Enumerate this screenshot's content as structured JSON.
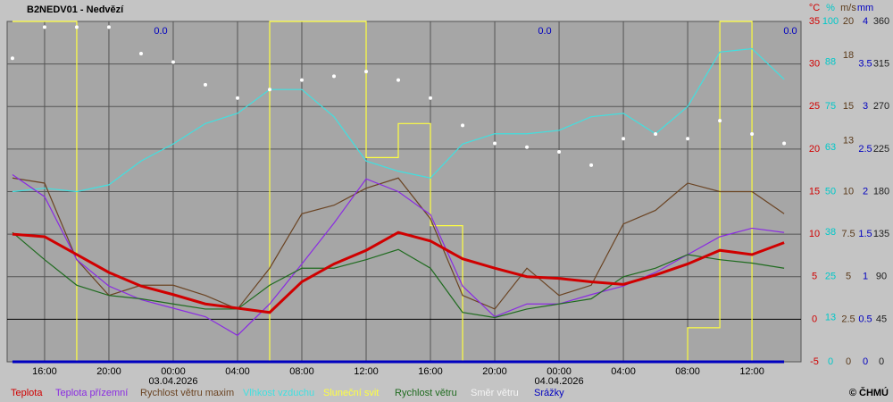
{
  "chart_data": {
    "type": "line",
    "title": "B2NEDV01 - Nedvězí",
    "copyright": "© ČHMÚ",
    "precip_sums": [
      "0.0",
      "0.0",
      "0.0"
    ],
    "x": [
      -10,
      -8,
      -6,
      -4,
      -2,
      0,
      2,
      4,
      6,
      8,
      10,
      12,
      14,
      16,
      18,
      20,
      22,
      24,
      26,
      28,
      30,
      32,
      34,
      36,
      38
    ],
    "xlim": [
      -10.33,
      39.05
    ],
    "xticks": [
      {
        "value": -8,
        "label": "16:00"
      },
      {
        "value": -4,
        "label": "20:00"
      },
      {
        "value": 0,
        "label": "00:00"
      },
      {
        "value": 4,
        "label": "04:00"
      },
      {
        "value": 8,
        "label": "08:00"
      },
      {
        "value": 12,
        "label": "12:00"
      },
      {
        "value": 16,
        "label": "16:00"
      },
      {
        "value": 20,
        "label": "20:00"
      },
      {
        "value": 24,
        "label": "00:00"
      },
      {
        "value": 28,
        "label": "04:00"
      },
      {
        "value": 32,
        "label": "08:00"
      },
      {
        "value": 36,
        "label": "12:00"
      }
    ],
    "date_labels": [
      {
        "value": 0,
        "label": "03.04.2026"
      },
      {
        "value": 24,
        "label": "04.04.2026"
      }
    ],
    "grid": true,
    "y_axes": [
      {
        "unit": "°C",
        "color": "#d00000",
        "lim": [
          -5,
          35
        ],
        "ticks": [
          -5,
          0,
          5,
          10,
          15,
          20,
          25,
          30,
          35
        ]
      },
      {
        "unit": "%",
        "color": "#00c8c8",
        "lim": [
          0,
          100
        ],
        "ticks": [
          0,
          13,
          25,
          38,
          50,
          63,
          75,
          88,
          100
        ]
      },
      {
        "unit": "m/s",
        "color": "#5a3a1a",
        "lim": [
          0,
          20
        ],
        "ticks": [
          0,
          2.5,
          5,
          7.5,
          10,
          13,
          15,
          18,
          20
        ]
      },
      {
        "unit": "mm",
        "color": "#0000c0",
        "lim": [
          0,
          4
        ],
        "ticks": [
          0,
          0.5,
          1,
          1.5,
          2,
          2.5,
          3,
          3.5,
          4
        ]
      },
      {
        "color": "#202020",
        "lim": [
          0,
          360
        ],
        "ticks": [
          0,
          45,
          90,
          135,
          180,
          225,
          270,
          315,
          360
        ]
      }
    ],
    "series": [
      {
        "name": "Teplota",
        "color": "#d00000",
        "axis": 0,
        "style": "thick",
        "values": [
          10,
          9.7,
          7.6,
          5.5,
          3.9,
          2.9,
          1.8,
          1.3,
          0.8,
          4.4,
          6.5,
          8.1,
          10.2,
          9.2,
          7.1,
          6,
          5,
          4.8,
          4.4,
          4.1,
          5.2,
          6.5,
          8.1,
          7.6,
          9
        ]
      },
      {
        "name": "Teplota přízemní",
        "color": "#8a2be2",
        "axis": 0,
        "style": "line",
        "values": [
          17,
          14.4,
          7,
          3.9,
          2.3,
          1.3,
          0.3,
          -1.9,
          1.8,
          6.5,
          11.3,
          16.5,
          15,
          12.3,
          3.9,
          0.3,
          1.8,
          1.8,
          2.9,
          3.9,
          5.5,
          7.6,
          9.7,
          10.7,
          10.2
        ]
      },
      {
        "name": "Rychlost větru maxim",
        "color": "#6b4423",
        "axis": 2,
        "style": "line",
        "values": [
          10.8,
          10.5,
          6,
          3.9,
          4.5,
          4.5,
          3.9,
          3.1,
          5.5,
          8.7,
          9.2,
          10.2,
          10.8,
          8.4,
          3.9,
          3.1,
          5.5,
          3.9,
          4.5,
          8.1,
          8.9,
          10.5,
          10,
          10,
          8.7
        ]
      },
      {
        "name": "Vlhkost vzduchu",
        "color": "#40e0e0",
        "axis": 1,
        "style": "line",
        "values": [
          50,
          51,
          50,
          52,
          59,
          64,
          70,
          73,
          80,
          80,
          72,
          59,
          56,
          54,
          64,
          67,
          67,
          68,
          72,
          73,
          67,
          75,
          91,
          92,
          83
        ]
      },
      {
        "name": "Sluneční svit",
        "color": "#ffff40",
        "axis": 1,
        "style": "step",
        "values": [
          100,
          100,
          0,
          0,
          0,
          0,
          0,
          0,
          100,
          100,
          100,
          60,
          70,
          40,
          0,
          0,
          0,
          0,
          0,
          0,
          0,
          10,
          100,
          0,
          0
        ]
      },
      {
        "name": "Rychlost větru",
        "color": "#1f6b1f",
        "axis": 2,
        "style": "line",
        "values": [
          7.6,
          6,
          4.5,
          3.9,
          3.7,
          3.4,
          3.1,
          3.1,
          4.5,
          5.5,
          5.5,
          6,
          6.6,
          5.5,
          2.9,
          2.6,
          3.1,
          3.4,
          3.7,
          5,
          5.5,
          6.3,
          6,
          5.8,
          5.5
        ]
      },
      {
        "name": "Směr větru",
        "color": "#ffffff",
        "axis": 4,
        "style": "dots",
        "values": [
          321,
          354,
          354,
          354,
          326,
          317,
          293,
          279,
          288,
          298,
          302,
          307,
          298,
          279,
          250,
          231,
          227,
          222,
          208,
          236,
          241,
          236,
          255,
          241,
          231
        ]
      },
      {
        "name": "Srážky",
        "color": "#0000c0",
        "axis": 3,
        "style": "thick",
        "values": [
          0,
          0,
          0,
          0,
          0,
          0,
          0,
          0,
          0,
          0,
          0,
          0,
          0,
          0,
          0,
          0,
          0,
          0,
          0,
          0,
          0,
          0,
          0,
          0,
          0
        ]
      }
    ]
  }
}
